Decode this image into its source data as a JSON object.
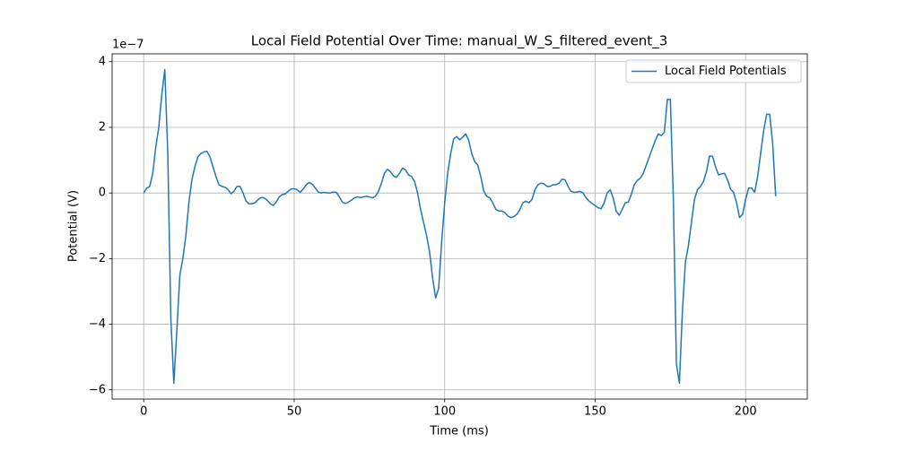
{
  "chart_data": {
    "type": "line",
    "title": "Local Field Potential Over Time: manual_W_S_filtered_event_3",
    "xlabel": "Time (ms)",
    "ylabel": "Potential (V)",
    "y_offset_label": "1e−7",
    "x": [
      0,
      1,
      2,
      3,
      4,
      5,
      6,
      7,
      8,
      9,
      10,
      11,
      12,
      13,
      14,
      15,
      16,
      17,
      18,
      19,
      20,
      21,
      22,
      23,
      24,
      25,
      26,
      27,
      28,
      29,
      30,
      31,
      32,
      33,
      34,
      35,
      36,
      37,
      38,
      39,
      40,
      41,
      42,
      43,
      44,
      45,
      46,
      47,
      48,
      49,
      50,
      51,
      52,
      53,
      54,
      55,
      56,
      57,
      58,
      59,
      60,
      61,
      62,
      63,
      64,
      65,
      66,
      67,
      68,
      69,
      70,
      71,
      72,
      73,
      74,
      75,
      76,
      77,
      78,
      79,
      80,
      81,
      82,
      83,
      84,
      85,
      86,
      87,
      88,
      89,
      90,
      91,
      92,
      93,
      94,
      95,
      96,
      97,
      98,
      99,
      100,
      101,
      102,
      103,
      104,
      105,
      106,
      107,
      108,
      109,
      110,
      111,
      112,
      113,
      114,
      115,
      116,
      117,
      118,
      119,
      120,
      121,
      122,
      123,
      124,
      125,
      126,
      127,
      128,
      129,
      130,
      131,
      132,
      133,
      134,
      135,
      136,
      137,
      138,
      139,
      140,
      141,
      142,
      143,
      144,
      145,
      146,
      147,
      148,
      149,
      150,
      151,
      152,
      153,
      154,
      155,
      156,
      157,
      158,
      159,
      160,
      161,
      162,
      163,
      164,
      165,
      166,
      167,
      168,
      169,
      170,
      171,
      172,
      173,
      174,
      175,
      176,
      177,
      178,
      179,
      180,
      181,
      182,
      183,
      184,
      185,
      186,
      187,
      188,
      189,
      190,
      191,
      192,
      193,
      194,
      195,
      196,
      197,
      198,
      199,
      200,
      201,
      202,
      203,
      204,
      205,
      206,
      207,
      208,
      209,
      210
    ],
    "series": [
      {
        "name": "Local Field Potentials",
        "color": "#1f77b4",
        "values": [
          0,
          0.15,
          0.2,
          0.6,
          1.4,
          2.0,
          3.0,
          3.76,
          1.2,
          -3.8,
          -5.8,
          -4.2,
          -2.5,
          -2.0,
          -1.3,
          -0.3,
          0.4,
          0.8,
          1.1,
          1.2,
          1.25,
          1.27,
          1.1,
          0.8,
          0.5,
          0.25,
          0.2,
          0.18,
          0.1,
          -0.02,
          0.05,
          0.2,
          0.2,
          0.0,
          -0.25,
          -0.33,
          -0.33,
          -0.3,
          -0.2,
          -0.14,
          -0.15,
          -0.22,
          -0.32,
          -0.38,
          -0.28,
          -0.12,
          -0.05,
          -0.03,
          0.05,
          0.12,
          0.13,
          0.1,
          0.02,
          0.12,
          0.25,
          0.32,
          0.27,
          0.15,
          0.03,
          0.0,
          0.02,
          0.0,
          0.0,
          0.03,
          0.02,
          -0.12,
          -0.28,
          -0.32,
          -0.28,
          -0.22,
          -0.15,
          -0.12,
          -0.14,
          -0.12,
          -0.1,
          -0.12,
          -0.15,
          -0.1,
          0.05,
          0.3,
          0.6,
          0.72,
          0.65,
          0.52,
          0.48,
          0.6,
          0.76,
          0.7,
          0.55,
          0.5,
          0.35,
          0.0,
          -0.5,
          -0.9,
          -1.3,
          -1.8,
          -2.6,
          -3.2,
          -2.9,
          -1.5,
          -0.3,
          0.6,
          1.2,
          1.65,
          1.72,
          1.62,
          1.7,
          1.8,
          1.6,
          1.2,
          0.95,
          0.85,
          0.5,
          0.05,
          -0.1,
          -0.15,
          -0.3,
          -0.5,
          -0.55,
          -0.55,
          -0.6,
          -0.7,
          -0.75,
          -0.72,
          -0.65,
          -0.5,
          -0.3,
          -0.25,
          -0.3,
          -0.2,
          0.1,
          0.25,
          0.3,
          0.28,
          0.2,
          0.2,
          0.25,
          0.25,
          0.3,
          0.42,
          0.4,
          0.2,
          0.05,
          0.02,
          0.03,
          0.05,
          0.0,
          -0.15,
          -0.25,
          -0.32,
          -0.38,
          -0.45,
          -0.48,
          -0.3,
          0.0,
          0.1,
          -0.15,
          -0.55,
          -0.68,
          -0.5,
          -0.3,
          -0.28,
          -0.05,
          0.25,
          0.38,
          0.45,
          0.6,
          0.85,
          1.1,
          1.35,
          1.6,
          1.8,
          1.75,
          1.85,
          2.85,
          2.85,
          -0.2,
          -5.2,
          -5.8,
          -3.6,
          -2.1,
          -1.6,
          -0.9,
          -0.2,
          0.1,
          0.2,
          0.35,
          0.65,
          1.12,
          1.12,
          0.8,
          0.55,
          0.58,
          0.6,
          0.4,
          0.12,
          0.02,
          -0.3,
          -0.75,
          -0.65,
          -0.2,
          0.15,
          0.15,
          0.02,
          0.5,
          1.2,
          1.9,
          2.4,
          2.4,
          1.5,
          -0.1
        ]
      }
    ],
    "xlim": [
      -10.5,
      220.5
    ],
    "xticks": [
      0,
      50,
      100,
      150,
      200
    ],
    "ylim": [
      -6.28,
      4.24
    ],
    "yticks": [
      {
        "value": -6,
        "label": "−6"
      },
      {
        "value": -4,
        "label": "−4"
      },
      {
        "value": -2,
        "label": "−2"
      },
      0,
      2,
      4
    ],
    "grid": true,
    "legend": "upper right"
  }
}
